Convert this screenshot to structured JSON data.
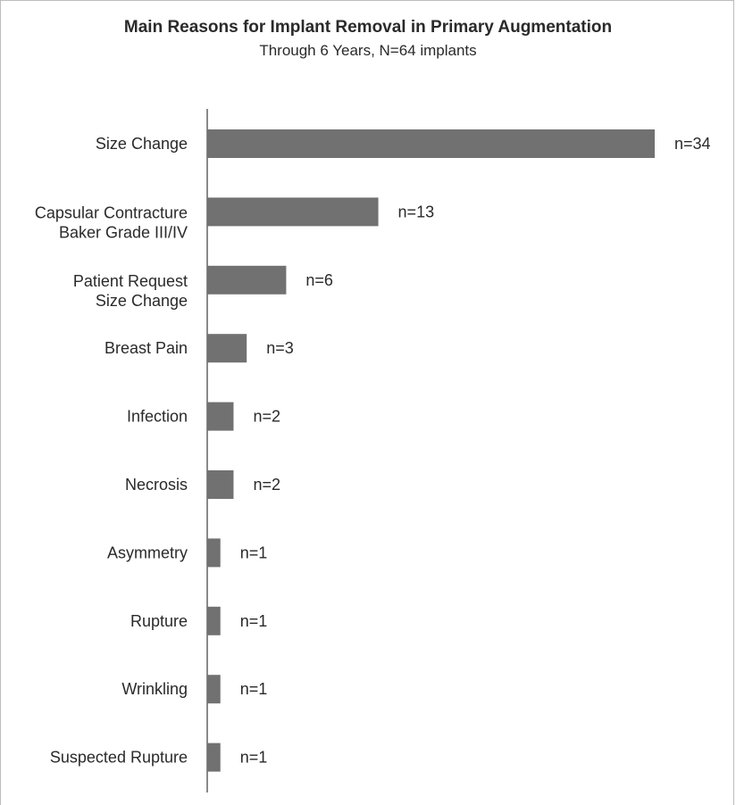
{
  "chart_data": {
    "type": "bar",
    "orientation": "horizontal",
    "title": "Main Reasons for Implant Removal in Primary Augmentation",
    "subtitle": "Through 6 Years, N=64 implants",
    "categories": [
      [
        "Size Change"
      ],
      [
        "Capsular Contracture",
        "Baker Grade III/IV"
      ],
      [
        "Patient Request",
        "Size Change"
      ],
      [
        "Breast Pain"
      ],
      [
        "Infection"
      ],
      [
        "Necrosis"
      ],
      [
        "Asymmetry"
      ],
      [
        "Rupture"
      ],
      [
        "Wrinkling"
      ],
      [
        "Suspected Rupture"
      ]
    ],
    "values": [
      34,
      13,
      6,
      3,
      2,
      2,
      1,
      1,
      1,
      1
    ],
    "value_labels": [
      "n=34",
      "n=13",
      "n=6",
      "n=3",
      "n=2",
      "n=2",
      "n=1",
      "n=1",
      "n=1",
      "n=1"
    ],
    "xlim": [
      0,
      34
    ],
    "bar_color": "#717171",
    "axis_color": "#8a8a8a",
    "grid": false,
    "legend": "none"
  }
}
